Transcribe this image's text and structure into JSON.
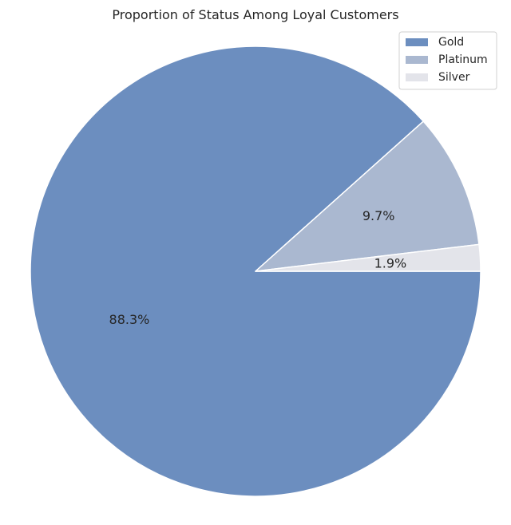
{
  "chart_data": {
    "type": "pie",
    "title": "Proportion of Status Among Loyal Customers",
    "categories": [
      "Gold",
      "Platinum",
      "Silver"
    ],
    "values": [
      88.3,
      9.7,
      1.9
    ],
    "labels": [
      "88.3%",
      "9.7%",
      "1.9%"
    ],
    "colors": [
      "#6c8ebf",
      "#aab8d0",
      "#e3e4ea"
    ],
    "start_angle_deg": 0,
    "direction": "clockwise",
    "edge_color": "#ffffff",
    "legend": {
      "placement": "top-right",
      "entries": [
        "Gold",
        "Platinum",
        "Silver"
      ]
    }
  }
}
